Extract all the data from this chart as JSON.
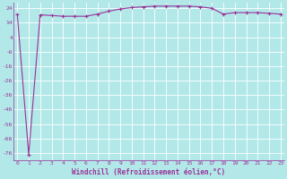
{
  "x": [
    0,
    1,
    2,
    3,
    4,
    5,
    6,
    7,
    8,
    9,
    10,
    11,
    12,
    13,
    14,
    15,
    16,
    17,
    18,
    19,
    20,
    21,
    22,
    23
  ],
  "y": [
    20,
    -77,
    19.5,
    19,
    18.5,
    18.5,
    18.5,
    20,
    22,
    23.5,
    24.5,
    25,
    25.5,
    25.5,
    25.5,
    25.5,
    25,
    24,
    20,
    21,
    21,
    21,
    20.5,
    20
  ],
  "line_color": "#993399",
  "marker_color": "#993399",
  "bg_color": "#b2e8e8",
  "grid_color": "#ffffff",
  "xlabel": "Windchill (Refroidissement éolien,°C)",
  "xlabel_color": "#993399",
  "ylabel_ticks": [
    24,
    14,
    4,
    -6,
    -16,
    -26,
    -36,
    -46,
    -56,
    -66,
    -76
  ],
  "xticks": [
    0,
    1,
    2,
    3,
    4,
    5,
    6,
    7,
    8,
    9,
    10,
    11,
    12,
    13,
    14,
    15,
    16,
    17,
    18,
    19,
    20,
    21,
    22,
    23
  ],
  "ylim": [
    -81,
    28
  ],
  "xlim": [
    -0.3,
    23.3
  ]
}
